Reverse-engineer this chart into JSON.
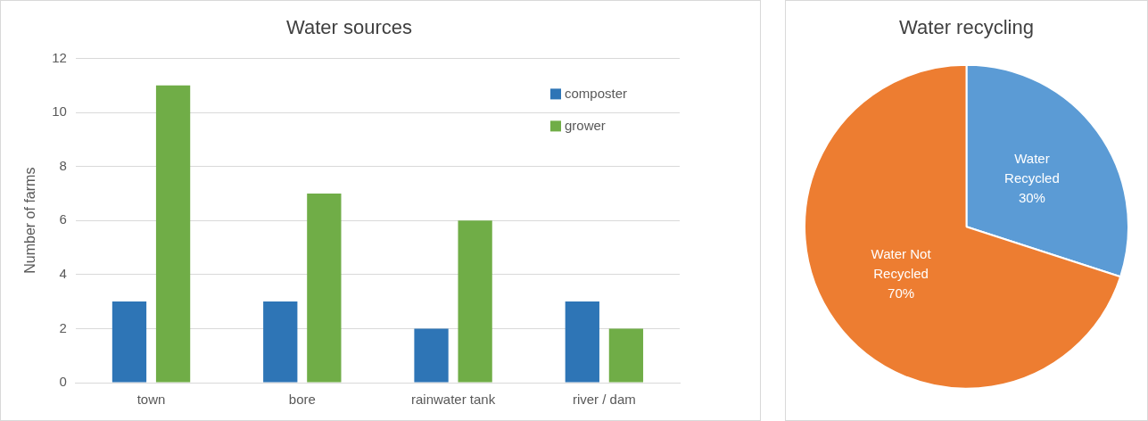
{
  "chart_data": [
    {
      "type": "bar",
      "title": "Water sources",
      "ylabel": "Number of farms",
      "categories": [
        "town",
        "bore",
        "rainwater tank",
        "river / dam"
      ],
      "series": [
        {
          "name": "composter",
          "color": "#2e75b6",
          "values": [
            3,
            3,
            2,
            3
          ]
        },
        {
          "name": "grower",
          "color": "#70ad47",
          "values": [
            11,
            7,
            6,
            2
          ]
        }
      ],
      "ylim": [
        0,
        12
      ],
      "yticks": [
        0,
        2,
        4,
        6,
        8,
        10,
        12
      ],
      "grid": "y",
      "legend": "top right"
    },
    {
      "type": "pie",
      "title": "Water recycling",
      "categories": [
        "Water Recycled",
        "Water Not Recycled"
      ],
      "values": [
        30,
        70
      ],
      "colors": [
        "#5b9bd5",
        "#ed7d31"
      ],
      "value_labels": [
        "30%",
        "70%"
      ]
    }
  ]
}
